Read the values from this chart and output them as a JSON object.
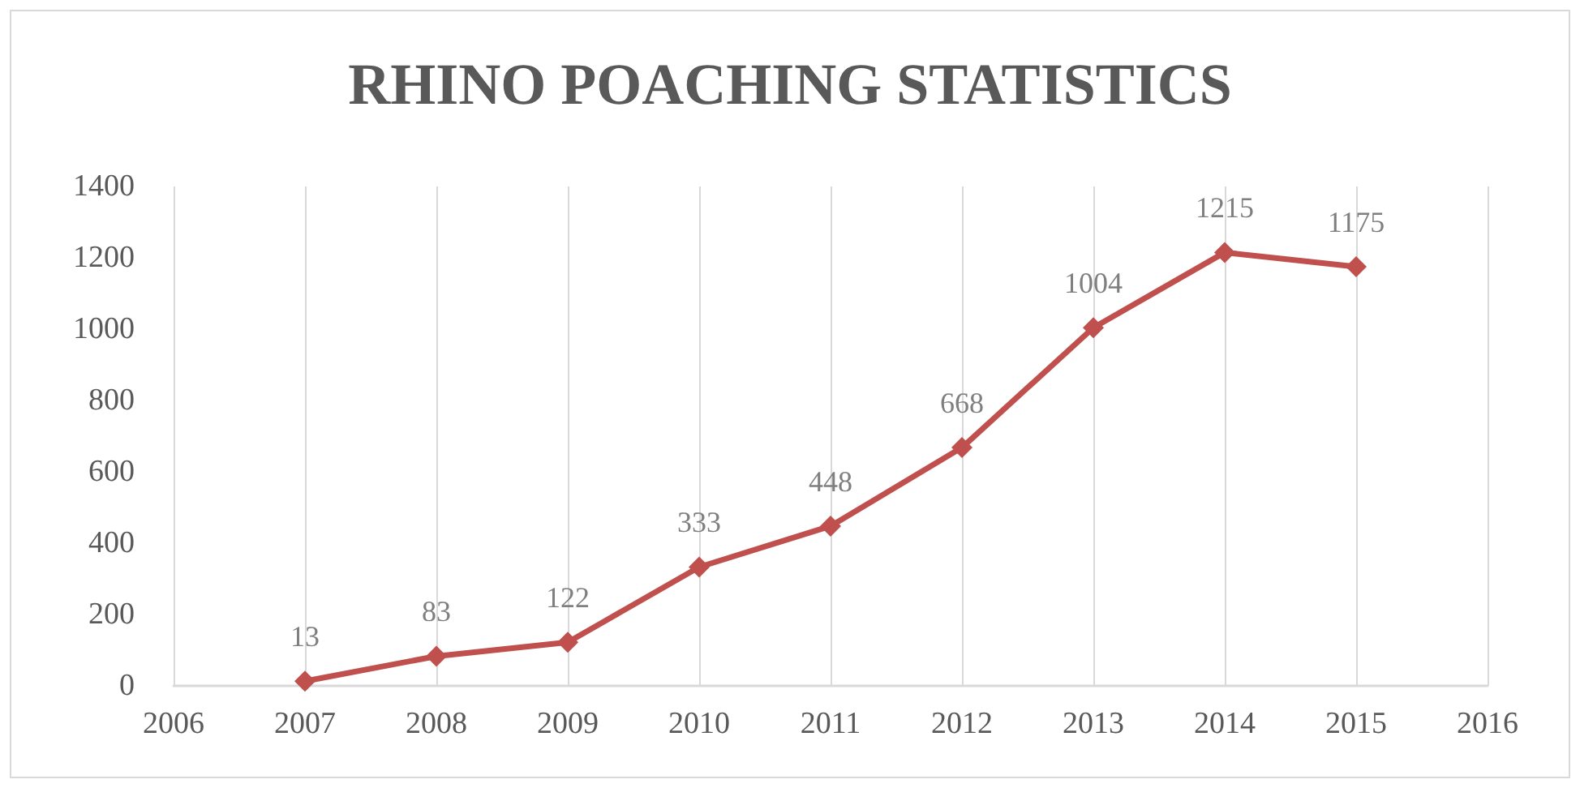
{
  "chart_data": {
    "type": "line",
    "title": "RHINO POACHING STATISTICS",
    "x": [
      2007,
      2008,
      2009,
      2010,
      2011,
      2012,
      2013,
      2014,
      2015
    ],
    "series": [
      {
        "color": "#c0504d",
        "values": [
          13,
          83,
          122,
          333,
          448,
          668,
          1004,
          1215,
          1175
        ]
      }
    ],
    "xlim": [
      2006,
      2016
    ],
    "xticks": [
      2006,
      2007,
      2008,
      2009,
      2010,
      2011,
      2012,
      2013,
      2014,
      2015,
      2016
    ],
    "ylim": [
      0,
      1400
    ],
    "yticks": [
      0,
      200,
      400,
      600,
      800,
      1000,
      1200,
      1400
    ],
    "grid": "x",
    "marker": "diamond",
    "line_style": "solid",
    "data_labels": true
  }
}
